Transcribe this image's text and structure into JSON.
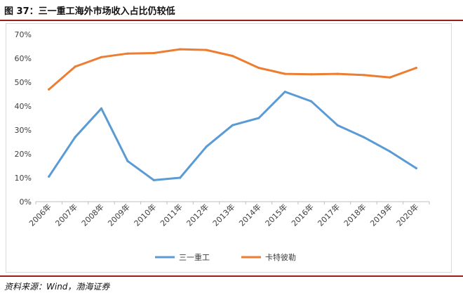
{
  "figure": {
    "title": "图 37：三一重工海外市场收入占比仍较低",
    "source": "资料来源：Wind，渤海证券"
  },
  "chart_data": {
    "type": "line",
    "x": [
      "2006年",
      "2007年",
      "2008年",
      "2009年",
      "2010年",
      "2011年",
      "2012年",
      "2013年",
      "2014年",
      "2015年",
      "2016年",
      "2017年",
      "2018年",
      "2019年",
      "2020年"
    ],
    "series": [
      {
        "name": "三一重工",
        "color": "#5b9bd5",
        "values": [
          10.5,
          27,
          39,
          17,
          9,
          10,
          23,
          32,
          35,
          46,
          42,
          32,
          27,
          21,
          14
        ]
      },
      {
        "name": "卡特彼勒",
        "color": "#ed7d31",
        "values": [
          47,
          56.5,
          60.5,
          62,
          62.2,
          63.8,
          63.5,
          61,
          56,
          53.5,
          53.3,
          53.5,
          53,
          52,
          56
        ]
      }
    ],
    "yticks": [
      "0%",
      "10%",
      "20%",
      "30%",
      "40%",
      "50%",
      "60%",
      "70%"
    ],
    "ylim": [
      0,
      70
    ],
    "grid": false,
    "legend": "bottom"
  }
}
